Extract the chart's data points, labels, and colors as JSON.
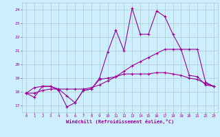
{
  "xlabel": "Windchill (Refroidissement éolien,°C)",
  "background_color": "#cceeff",
  "grid_color": "#aacccc",
  "line_color": "#990099",
  "x_ticks": [
    0,
    1,
    2,
    3,
    4,
    5,
    6,
    7,
    8,
    9,
    10,
    11,
    12,
    13,
    14,
    15,
    16,
    17,
    18,
    19,
    20,
    21,
    22,
    23
  ],
  "y_ticks": [
    17,
    18,
    19,
    20,
    21,
    22,
    23,
    24
  ],
  "ylim": [
    16.5,
    24.5
  ],
  "xlim": [
    -0.5,
    23.5
  ],
  "series": [
    [
      17.9,
      17.6,
      18.4,
      18.4,
      18.1,
      16.9,
      17.2,
      18.1,
      18.2,
      19.0,
      20.9,
      22.5,
      21.0,
      24.1,
      22.2,
      22.2,
      23.9,
      23.5,
      22.2,
      21.1,
      19.2,
      19.1,
      18.5,
      18.4
    ],
    [
      17.9,
      18.3,
      18.4,
      18.4,
      18.2,
      17.7,
      17.2,
      18.1,
      18.2,
      18.9,
      19.0,
      19.1,
      19.3,
      19.3,
      19.3,
      19.3,
      19.4,
      19.4,
      19.3,
      19.2,
      19.0,
      18.9,
      18.6,
      18.4
    ],
    [
      17.9,
      17.9,
      18.1,
      18.2,
      18.2,
      18.2,
      18.2,
      18.2,
      18.3,
      18.5,
      18.8,
      19.1,
      19.5,
      19.9,
      20.2,
      20.5,
      20.8,
      21.1,
      21.1,
      21.1,
      21.1,
      21.1,
      18.7,
      18.4
    ]
  ]
}
